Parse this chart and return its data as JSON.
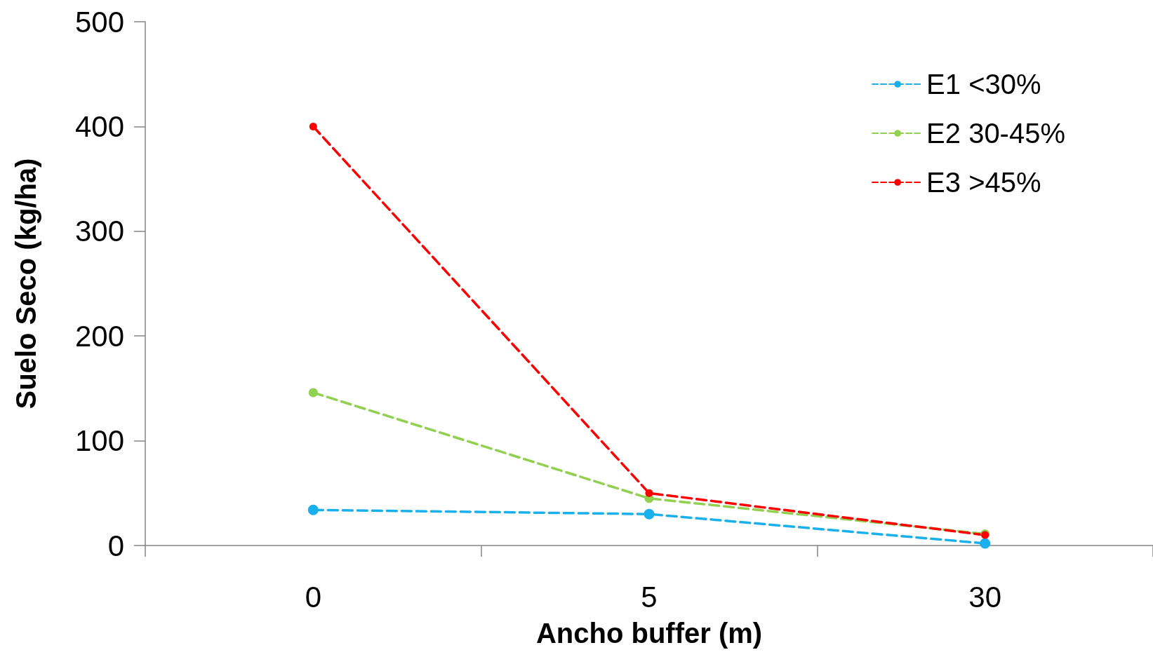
{
  "chart_data": {
    "type": "line",
    "xlabel": "Ancho buffer (m)",
    "ylabel": "Suelo Seco (kg/ha)",
    "categories": [
      "0",
      "5",
      "30"
    ],
    "series": [
      {
        "name": "E1 <30%",
        "color": "#1ab0ec",
        "values": [
          34,
          30,
          2
        ]
      },
      {
        "name": "E2 30-45%",
        "color": "#92d050",
        "values": [
          146,
          45,
          11
        ]
      },
      {
        "name": "E3 >45%",
        "color": "#ff0000",
        "values": [
          400,
          50,
          10
        ]
      }
    ],
    "ylim": [
      0,
      500
    ],
    "yticks": [
      0,
      100,
      200,
      300,
      400,
      500
    ],
    "grid": false,
    "legend": "top right",
    "marker": "circle",
    "line_style": "dashed"
  }
}
